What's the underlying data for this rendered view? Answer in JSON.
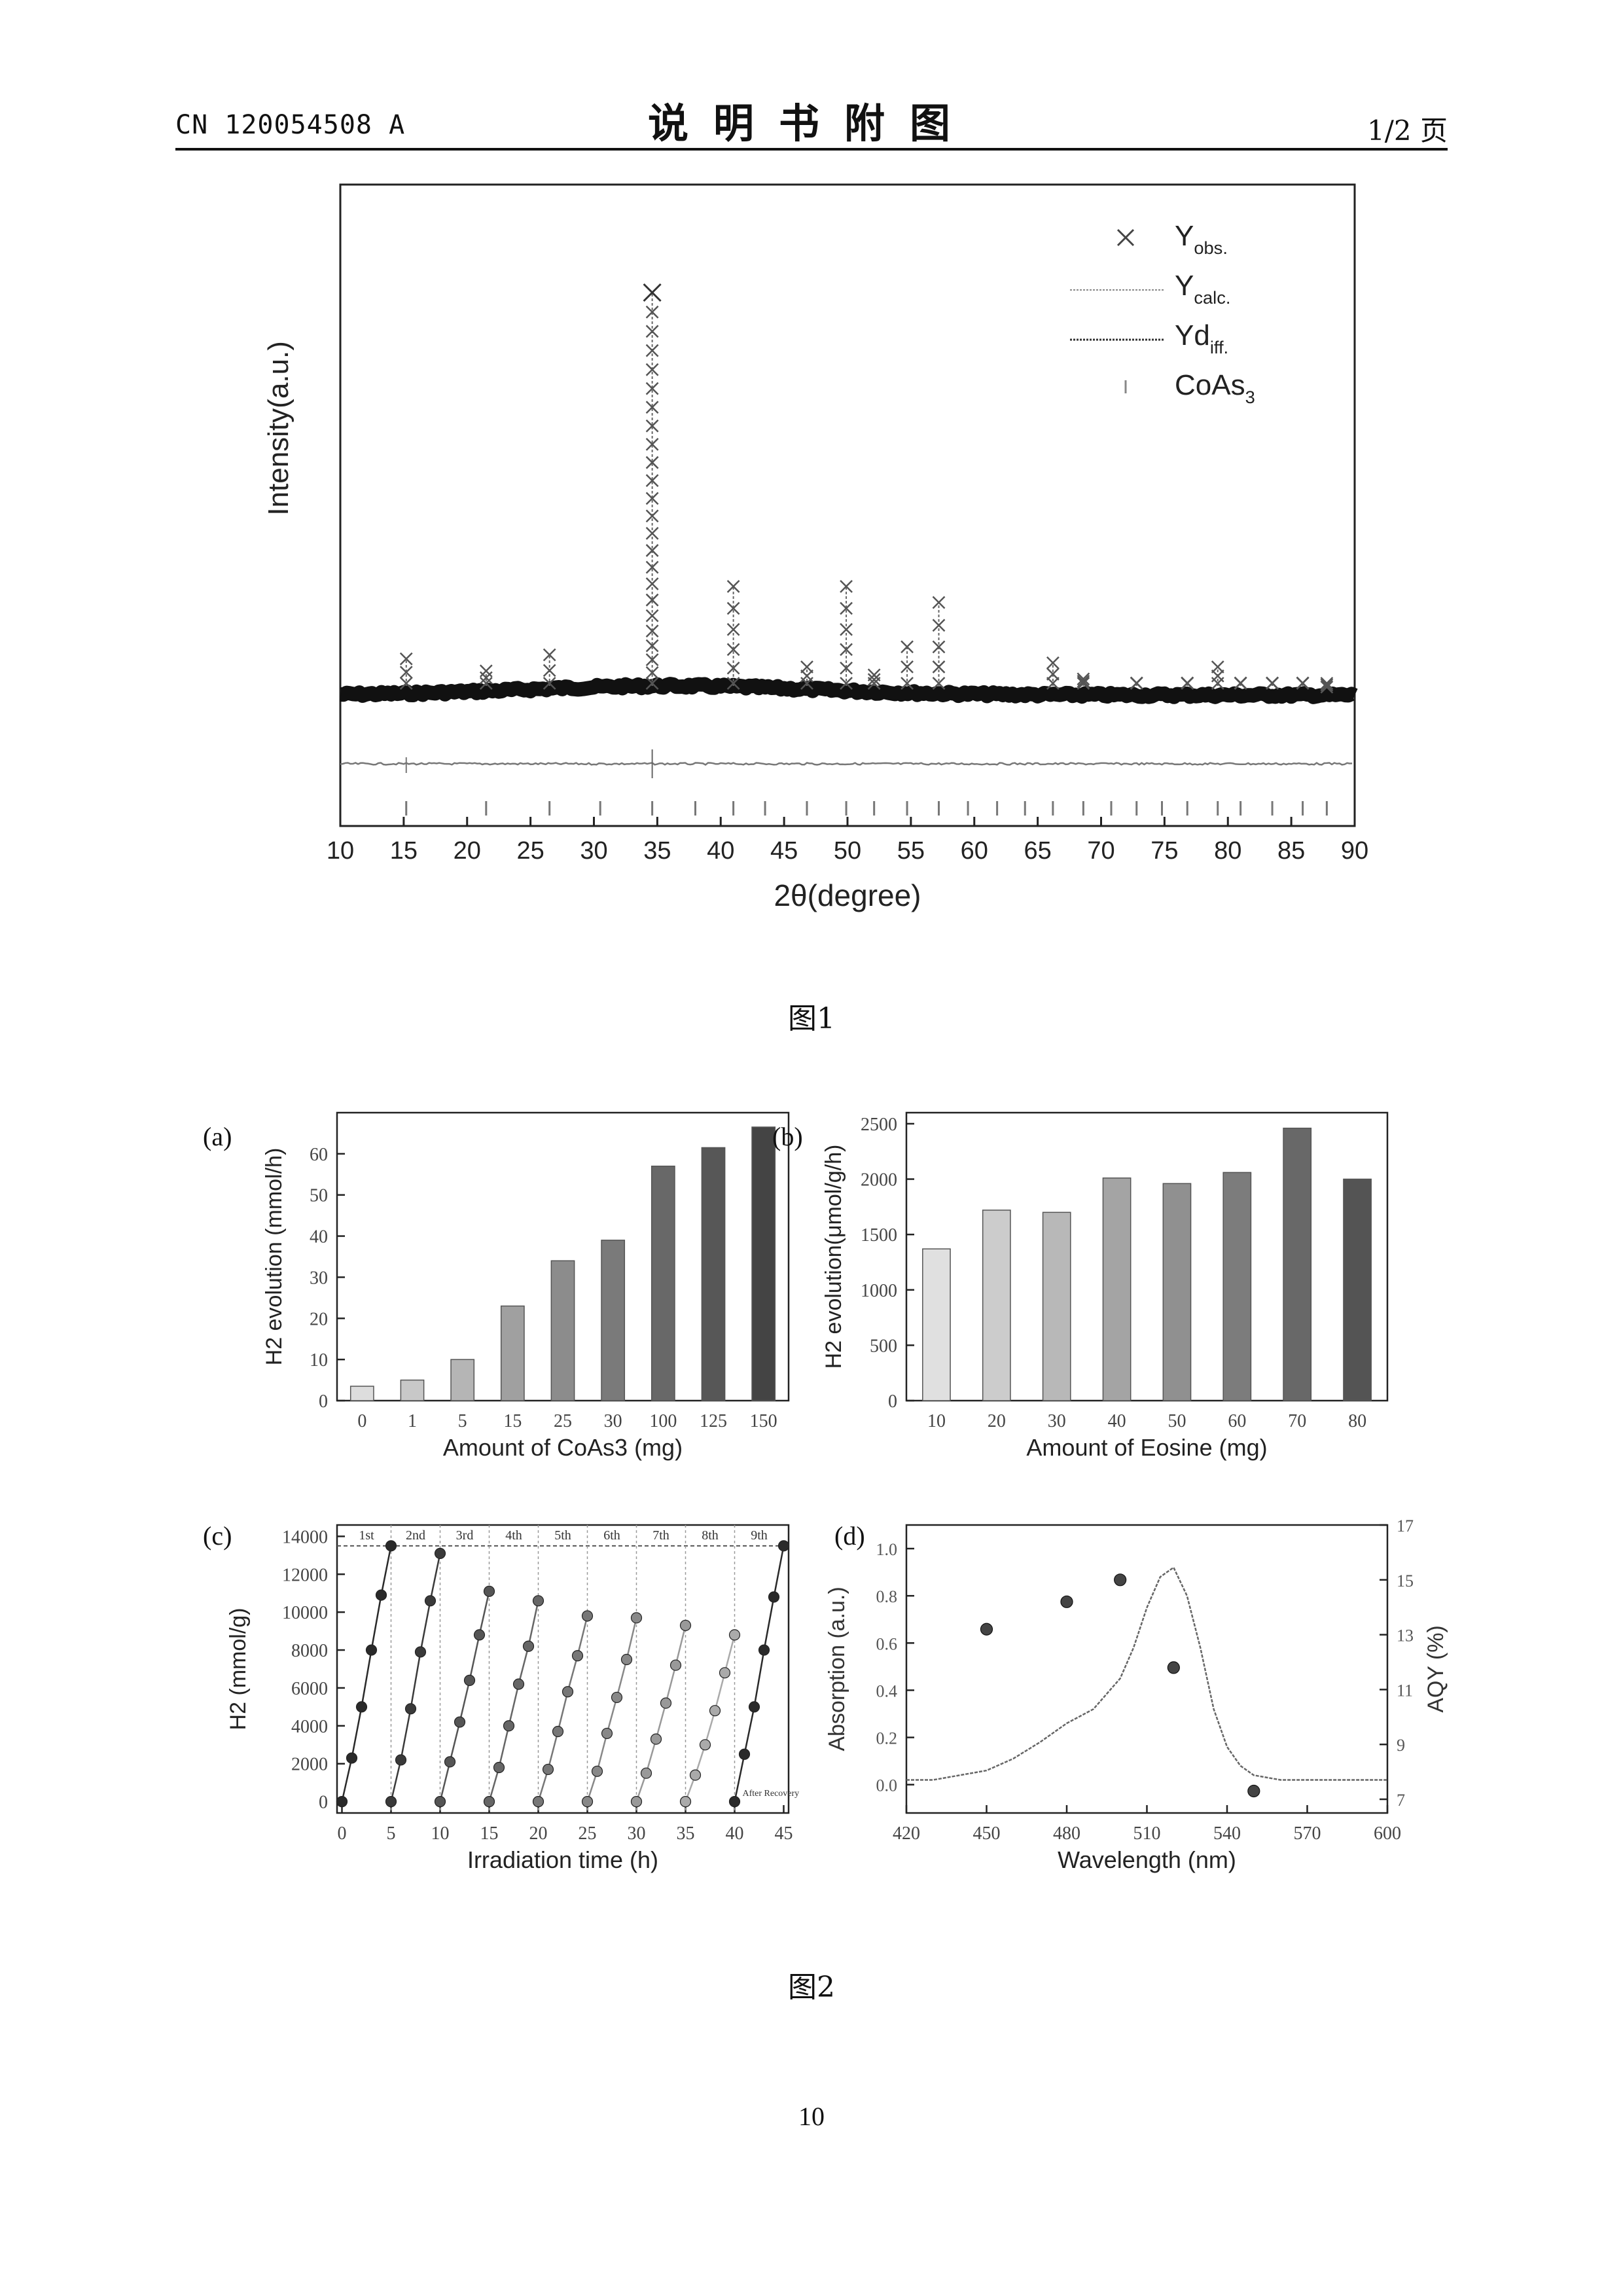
{
  "header": {
    "doc_number": "CN 120054508 A",
    "title": "说明书附图",
    "page_label": "1/2 页"
  },
  "captions": {
    "fig1": "图1",
    "fig2": "图2"
  },
  "page_number": "10",
  "chart_data": [
    {
      "id": "fig1",
      "type": "scatter",
      "title": "",
      "xlabel": "2θ(degree)",
      "ylabel": "Intensity(a.u.)",
      "xlim": [
        10,
        90
      ],
      "xticks": [
        "10",
        "15",
        "20",
        "25",
        "30",
        "35",
        "40",
        "45",
        "50",
        "55",
        "60",
        "65",
        "70",
        "75",
        "80",
        "85",
        "90"
      ],
      "legend": [
        {
          "symbol": "×",
          "main": "Y",
          "sub": "obs."
        },
        {
          "symbol": "line",
          "main": "Y",
          "sub": "calc."
        },
        {
          "symbol": "dashline",
          "main": "Yd",
          "sub": "iff."
        },
        {
          "symbol": "tick",
          "main": "CoAs",
          "sub": "3"
        }
      ],
      "legend_position": "top-right",
      "peaks_2theta": [
        15.2,
        21.5,
        26.5,
        34.6,
        41.0,
        46.8,
        49.9,
        52.1,
        54.7,
        57.2,
        66.2,
        68.6,
        72.8,
        76.8,
        79.2,
        81.0,
        83.5,
        85.9,
        87.8
      ],
      "peak_relative_intensity": [
        0.09,
        0.06,
        0.1,
        1.0,
        0.27,
        0.07,
        0.27,
        0.05,
        0.12,
        0.23,
        0.08,
        0.04,
        0.03,
        0.03,
        0.07,
        0.03,
        0.03,
        0.03,
        0.02
      ],
      "reflection_ticks": [
        15.2,
        21.5,
        26.5,
        30.5,
        34.6,
        38.0,
        41.0,
        43.5,
        46.8,
        49.9,
        52.1,
        54.7,
        57.2,
        59.5,
        61.8,
        64.0,
        66.2,
        68.6,
        70.8,
        72.8,
        74.8,
        76.8,
        79.2,
        81.0,
        83.5,
        85.9,
        87.8
      ]
    },
    {
      "id": "fig2a",
      "type": "bar",
      "panel_label": "(a)",
      "xlabel": "Amount of CoAs3 (mg)",
      "ylabel": "H2 evolution (mmol/h)",
      "categories": [
        "0",
        "1",
        "5",
        "15",
        "25",
        "30",
        "100",
        "125",
        "150"
      ],
      "values": [
        3.5,
        5,
        10,
        23,
        34,
        39,
        57,
        61.5,
        66.5
      ],
      "ylim": [
        0,
        70
      ],
      "yticks": [
        "0",
        "10",
        "20",
        "30",
        "40",
        "50",
        "60"
      ],
      "colors": [
        "#dddddd",
        "#c8c8c8",
        "#b5b5b5",
        "#a0a0a0",
        "#8c8c8c",
        "#7a7a7a",
        "#686868",
        "#575757",
        "#444444"
      ]
    },
    {
      "id": "fig2b",
      "type": "bar",
      "panel_label": "(b)",
      "xlabel": "Amount of Eosine (mg)",
      "ylabel": "H2 evolution(μmol/g/h)",
      "categories": [
        "10",
        "20",
        "30",
        "40",
        "50",
        "60",
        "70",
        "80"
      ],
      "values": [
        1370,
        1720,
        1700,
        2010,
        1960,
        2060,
        2460,
        2000
      ],
      "ylim": [
        0,
        2600
      ],
      "yticks": [
        "0",
        "500",
        "1000",
        "1500",
        "2000",
        "2500"
      ],
      "colors": [
        "#e0e0e0",
        "#cccccc",
        "#b8b8b8",
        "#a4a4a4",
        "#909090",
        "#7c7c7c",
        "#686868",
        "#545454"
      ]
    },
    {
      "id": "fig2c",
      "type": "line",
      "panel_label": "(c)",
      "xlabel": "Irradiation time (h)",
      "ylabel": "H2 (mmol/g)",
      "xlim": [
        -0.5,
        45.5
      ],
      "ylim": [
        -600,
        14600
      ],
      "xticks": [
        "0",
        "5",
        "10",
        "15",
        "20",
        "25",
        "30",
        "35",
        "40",
        "45"
      ],
      "yticks": [
        "0",
        "2000",
        "4000",
        "6000",
        "8000",
        "10000",
        "12000",
        "14000"
      ],
      "cycle_labels": [
        "1st",
        "2nd",
        "3rd",
        "4th",
        "5th",
        "6th",
        "7th",
        "8th",
        "9th"
      ],
      "annotation": "After Recovery",
      "cycles": [
        {
          "x": [
            0,
            1,
            2,
            3,
            4,
            5
          ],
          "y": [
            0,
            2300,
            5000,
            8000,
            10900,
            13500
          ]
        },
        {
          "x": [
            5,
            6,
            7,
            8,
            9,
            10
          ],
          "y": [
            0,
            2200,
            4900,
            7900,
            10600,
            13100
          ]
        },
        {
          "x": [
            10,
            11,
            12,
            13,
            14,
            15
          ],
          "y": [
            0,
            2100,
            4200,
            6400,
            8800,
            11100
          ]
        },
        {
          "x": [
            15,
            16,
            17,
            18,
            19,
            20
          ],
          "y": [
            0,
            1800,
            4000,
            6200,
            8200,
            10600
          ]
        },
        {
          "x": [
            20,
            21,
            22,
            23,
            24,
            25
          ],
          "y": [
            0,
            1700,
            3700,
            5800,
            7700,
            9800
          ]
        },
        {
          "x": [
            25,
            26,
            27,
            28,
            29,
            30
          ],
          "y": [
            0,
            1600,
            3600,
            5500,
            7500,
            9700
          ]
        },
        {
          "x": [
            30,
            31,
            32,
            33,
            34,
            35
          ],
          "y": [
            0,
            1500,
            3300,
            5200,
            7200,
            9300
          ]
        },
        {
          "x": [
            35,
            36,
            37,
            38,
            39,
            40
          ],
          "y": [
            0,
            1400,
            3000,
            4800,
            6800,
            8800
          ]
        },
        {
          "x": [
            40,
            41,
            42,
            43,
            44,
            45
          ],
          "y": [
            0,
            2500,
            5000,
            8000,
            10800,
            13500
          ]
        }
      ],
      "colors": [
        "#2a2a2a",
        "#3a3a3a",
        "#555555",
        "#666666",
        "#777777",
        "#888888",
        "#999999",
        "#aaaaaa",
        "#2a2a2a"
      ]
    },
    {
      "id": "fig2d",
      "type": "line",
      "panel_label": "(d)",
      "xlabel": "Wavelength (nm)",
      "ylabel": "Absorption (a.u.)",
      "y2label": "AQY (%)",
      "xlim": [
        420,
        600
      ],
      "ylim": [
        -0.12,
        1.1
      ],
      "y2lim": [
        6.5,
        17
      ],
      "xticks": [
        "420",
        "450",
        "480",
        "510",
        "540",
        "570",
        "600"
      ],
      "yticks": [
        "0.0",
        "0.2",
        "0.4",
        "0.6",
        "0.8",
        "1.0"
      ],
      "y2ticks": [
        "7",
        "9",
        "11",
        "13",
        "15",
        "17"
      ],
      "absorption": {
        "x": [
          420,
          430,
          440,
          450,
          460,
          470,
          480,
          490,
          500,
          505,
          510,
          515,
          520,
          525,
          530,
          535,
          540,
          545,
          550,
          560,
          570,
          580,
          600
        ],
        "y": [
          0.02,
          0.02,
          0.04,
          0.06,
          0.11,
          0.18,
          0.26,
          0.32,
          0.45,
          0.58,
          0.75,
          0.88,
          0.92,
          0.8,
          0.58,
          0.32,
          0.16,
          0.08,
          0.04,
          0.02,
          0.02,
          0.02,
          0.02
        ]
      },
      "aqy": {
        "x": [
          450,
          480,
          500,
          520,
          550
        ],
        "y": [
          13.2,
          14.2,
          15.0,
          11.8,
          7.3
        ]
      }
    }
  ]
}
